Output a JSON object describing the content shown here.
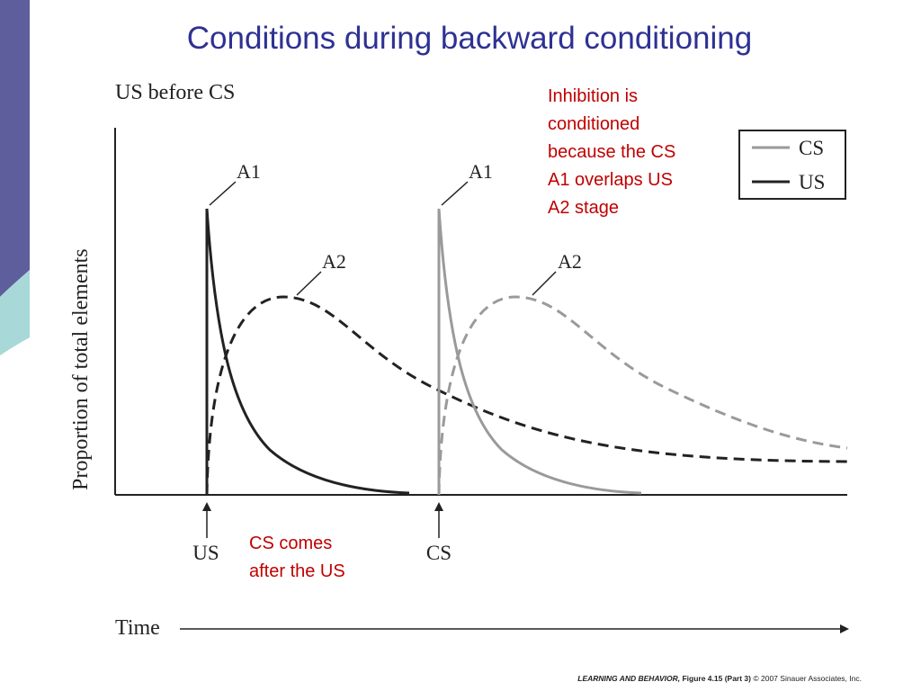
{
  "title": "Conditions during backward conditioning",
  "figure": {
    "heading": "US before CS",
    "y_axis_label": "Proportion of total elements",
    "x_axis_label": "Time",
    "curve_labels": [
      "A1",
      "A2",
      "A1",
      "A2"
    ],
    "legend": [
      "CS",
      "US"
    ],
    "markers": [
      "US",
      "CS"
    ]
  },
  "annotations": {
    "inhibition": [
      "Inhibition is",
      "conditioned",
      "because the CS",
      "A1 overlaps US",
      "A2 stage"
    ],
    "order": [
      "CS comes",
      "after the US"
    ]
  },
  "credit": {
    "book": "LEARNING AND BEHAVIOR,",
    "figure": "Figure 4.15 (Part 3)",
    "copyright": "© 2007 Sinauer Associates, Inc."
  }
}
